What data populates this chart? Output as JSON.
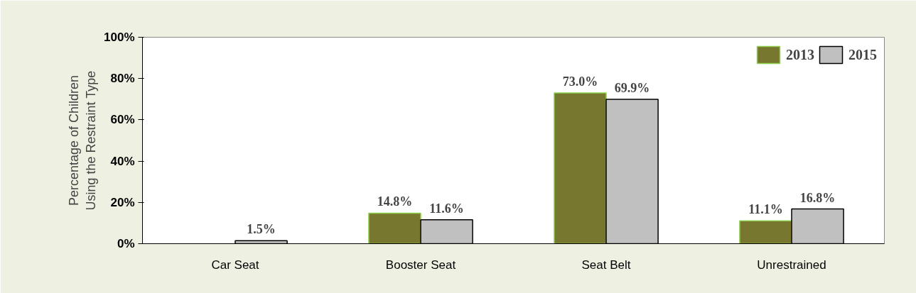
{
  "chart_data": {
    "type": "bar",
    "ylabel": "Percentage of Children\nUsing the Restraint Type",
    "categories": [
      "Car Seat",
      "Booster Seat",
      "Seat Belt",
      "Unrestrained"
    ],
    "series": [
      {
        "name": "2013",
        "color": "#77772f",
        "values": [
          null,
          14.8,
          73.0,
          11.1
        ],
        "value_labels": [
          null,
          "14.8%",
          "73.0%",
          "11.1%"
        ]
      },
      {
        "name": "2015",
        "color": "#c0c0c0",
        "values": [
          1.5,
          11.6,
          69.9,
          16.8
        ],
        "value_labels": [
          "1.5%",
          "11.6%",
          "69.9%",
          "16.8%"
        ]
      }
    ],
    "ylim": [
      0,
      100
    ],
    "yticks": [
      {
        "value": 0,
        "label": "0%"
      },
      {
        "value": 20,
        "label": "20%"
      },
      {
        "value": 40,
        "label": "40%"
      },
      {
        "value": 60,
        "label": "60%"
      },
      {
        "value": 80,
        "label": "80%"
      },
      {
        "value": 100,
        "label": "100%"
      }
    ],
    "grid": false,
    "legend": "top right"
  }
}
